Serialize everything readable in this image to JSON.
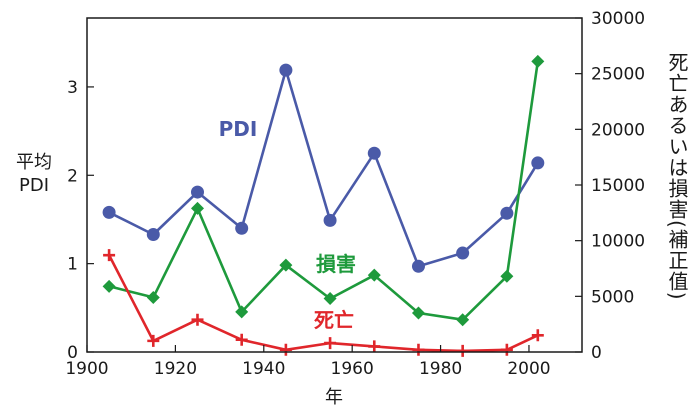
{
  "chart_data": {
    "type": "line",
    "xlabel": "年",
    "ylabel_left": [
      "平均",
      "PDI"
    ],
    "ylabel_right": "死亡あるいは損害(補正值)",
    "x_ticks": [
      1900,
      1920,
      1940,
      1960,
      1980,
      2000
    ],
    "xlim": [
      1900,
      2012
    ],
    "ylim_left": [
      0,
      3.78
    ],
    "y_ticks_left": [
      0,
      1,
      2,
      3
    ],
    "ylim_right": [
      0,
      30000
    ],
    "y_ticks_right": [
      0,
      5000,
      10000,
      15000,
      20000,
      25000,
      30000
    ],
    "grid": false,
    "series": [
      {
        "name": "PDI",
        "axis": "left",
        "color": "#4a5aa8",
        "marker": "circle",
        "x": [
          1905,
          1915,
          1925,
          1935,
          1945,
          1955,
          1965,
          1975,
          1985,
          1995,
          2002
        ],
        "values": [
          1.58,
          1.33,
          1.81,
          1.4,
          3.19,
          1.49,
          2.25,
          0.97,
          1.12,
          1.57,
          2.14
        ]
      },
      {
        "name": "損害",
        "axis": "right",
        "color": "#1e9a3c",
        "marker": "diamond",
        "x": [
          1905,
          1915,
          1925,
          1935,
          1945,
          1955,
          1965,
          1975,
          1985,
          1995,
          2002
        ],
        "values": [
          5900,
          4900,
          12900,
          3600,
          7800,
          4800,
          6900,
          3500,
          2900,
          6800,
          26100
        ]
      },
      {
        "name": "死亡",
        "axis": "right",
        "color": "#e0262b",
        "marker": "plus",
        "x": [
          1905,
          1915,
          1925,
          1935,
          1945,
          1955,
          1965,
          1975,
          1985,
          1995,
          2002
        ],
        "values": [
          8700,
          1000,
          2900,
          1100,
          200,
          800,
          500,
          200,
          100,
          200,
          1500
        ]
      }
    ]
  }
}
